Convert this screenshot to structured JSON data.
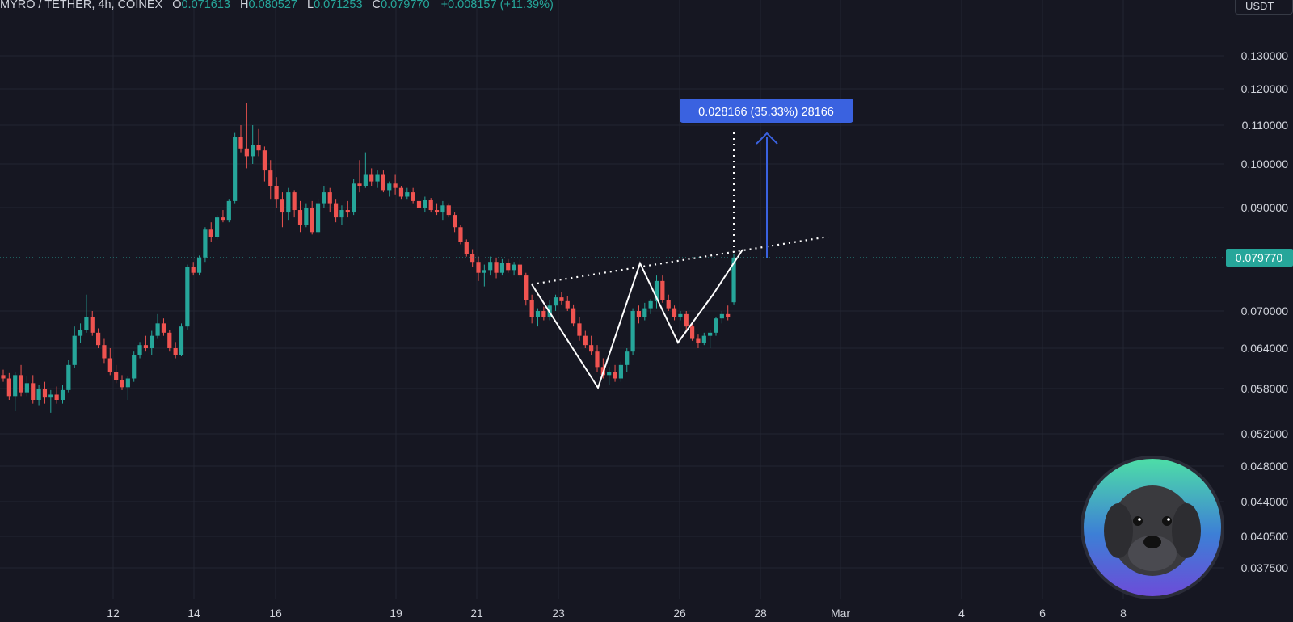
{
  "header": {
    "symbol": "MYRO / TETHER, 4h, COINEX",
    "open_label": "O",
    "open": "0.071613",
    "high_label": "H",
    "high": "0.080527",
    "low_label": "L",
    "low": "0.071253",
    "close_label": "C",
    "close": "0.079770",
    "change": "+0.008157 (+11.39%)"
  },
  "unit_button": "USDT",
  "measure_label": "0.028166 (35.33%) 28166",
  "colors": {
    "bg": "#161722",
    "up": "#26a69a",
    "down": "#ef5350",
    "grid": "#232532",
    "accent": "#3a62e0",
    "price_tag": "#26a69a"
  },
  "chart_data": {
    "type": "candlestick",
    "symbol": "MYRO / TETHER",
    "interval": "4h",
    "exchange": "COINEX",
    "current_price": 0.07977,
    "current_price_label": "0.079770",
    "y_ticks": [
      "0.130000",
      "0.120000",
      "0.110000",
      "0.100000",
      "0.090000",
      "0.079770",
      "0.070000",
      "0.064000",
      "0.058000",
      "0.052000",
      "0.048000",
      "0.044000",
      "0.040500",
      "0.037500"
    ],
    "x_ticks": [
      "12",
      "14",
      "16",
      "19",
      "21",
      "23",
      "26",
      "28",
      "Mar",
      "4",
      "6",
      "8"
    ],
    "candles": [
      [
        0.06,
        0.0608,
        0.059,
        0.0595
      ],
      [
        0.0595,
        0.0603,
        0.0565,
        0.057
      ],
      [
        0.057,
        0.0605,
        0.055,
        0.06
      ],
      [
        0.06,
        0.0615,
        0.057,
        0.0575
      ],
      [
        0.0575,
        0.0598,
        0.057,
        0.0588
      ],
      [
        0.0588,
        0.06,
        0.056,
        0.0565
      ],
      [
        0.0565,
        0.0585,
        0.0558,
        0.058
      ],
      [
        0.058,
        0.059,
        0.056,
        0.0568
      ],
      [
        0.0568,
        0.0578,
        0.0548,
        0.0572
      ],
      [
        0.0572,
        0.0583,
        0.056,
        0.0565
      ],
      [
        0.0565,
        0.0585,
        0.056,
        0.0578
      ],
      [
        0.0578,
        0.0622,
        0.0575,
        0.0615
      ],
      [
        0.0615,
        0.0675,
        0.061,
        0.066
      ],
      [
        0.066,
        0.068,
        0.0648,
        0.067
      ],
      [
        0.067,
        0.073,
        0.0665,
        0.069
      ],
      [
        0.069,
        0.07,
        0.066,
        0.0665
      ],
      [
        0.0665,
        0.0672,
        0.064,
        0.0645
      ],
      [
        0.0645,
        0.0655,
        0.0618,
        0.0625
      ],
      [
        0.0625,
        0.064,
        0.06,
        0.0605
      ],
      [
        0.0605,
        0.0615,
        0.0588,
        0.0592
      ],
      [
        0.0592,
        0.06,
        0.0578,
        0.0582
      ],
      [
        0.0582,
        0.0598,
        0.0565,
        0.0595
      ],
      [
        0.0595,
        0.0635,
        0.059,
        0.063
      ],
      [
        0.063,
        0.065,
        0.0625,
        0.0645
      ],
      [
        0.0645,
        0.066,
        0.0635,
        0.064
      ],
      [
        0.064,
        0.0668,
        0.063,
        0.066
      ],
      [
        0.066,
        0.0695,
        0.0655,
        0.068
      ],
      [
        0.068,
        0.0688,
        0.066,
        0.0665
      ],
      [
        0.0665,
        0.067,
        0.0635,
        0.064
      ],
      [
        0.064,
        0.065,
        0.0625,
        0.063
      ],
      [
        0.063,
        0.068,
        0.0628,
        0.0675
      ],
      [
        0.0675,
        0.0785,
        0.067,
        0.078
      ],
      [
        0.078,
        0.079,
        0.0765,
        0.077
      ],
      [
        0.077,
        0.0802,
        0.0765,
        0.0798
      ],
      [
        0.0798,
        0.086,
        0.079,
        0.0855
      ],
      [
        0.0855,
        0.087,
        0.083,
        0.084
      ],
      [
        0.084,
        0.0885,
        0.0835,
        0.088
      ],
      [
        0.088,
        0.0895,
        0.087,
        0.0875
      ],
      [
        0.0875,
        0.092,
        0.087,
        0.0915
      ],
      [
        0.0915,
        0.108,
        0.091,
        0.107
      ],
      [
        0.107,
        0.11,
        0.103,
        0.104
      ],
      [
        0.104,
        0.116,
        0.099,
        0.102
      ],
      [
        0.102,
        0.11,
        0.1,
        0.105
      ],
      [
        0.105,
        0.109,
        0.102,
        0.1035
      ],
      [
        0.1035,
        0.1045,
        0.096,
        0.0985
      ],
      [
        0.0985,
        0.101,
        0.092,
        0.095
      ],
      [
        0.095,
        0.097,
        0.09,
        0.092
      ],
      [
        0.092,
        0.0935,
        0.086,
        0.089
      ],
      [
        0.089,
        0.0945,
        0.0875,
        0.0935
      ],
      [
        0.0935,
        0.094,
        0.088,
        0.0895
      ],
      [
        0.0895,
        0.0915,
        0.085,
        0.0865
      ],
      [
        0.0865,
        0.091,
        0.086,
        0.09
      ],
      [
        0.09,
        0.0915,
        0.0845,
        0.085
      ],
      [
        0.085,
        0.092,
        0.0845,
        0.091
      ],
      [
        0.091,
        0.095,
        0.09,
        0.0935
      ],
      [
        0.0935,
        0.0945,
        0.089,
        0.091
      ],
      [
        0.091,
        0.092,
        0.087,
        0.088
      ],
      [
        0.088,
        0.0905,
        0.0865,
        0.0895
      ],
      [
        0.0895,
        0.0915,
        0.088,
        0.089
      ],
      [
        0.089,
        0.0965,
        0.0885,
        0.0955
      ],
      [
        0.0955,
        0.101,
        0.0935,
        0.095
      ],
      [
        0.095,
        0.103,
        0.0945,
        0.0975
      ],
      [
        0.0975,
        0.099,
        0.095,
        0.096
      ],
      [
        0.096,
        0.0985,
        0.0945,
        0.0975
      ],
      [
        0.0975,
        0.0985,
        0.0935,
        0.094
      ],
      [
        0.094,
        0.096,
        0.0925,
        0.0955
      ],
      [
        0.0955,
        0.0975,
        0.093,
        0.0945
      ],
      [
        0.0945,
        0.095,
        0.092,
        0.0925
      ],
      [
        0.0925,
        0.0945,
        0.092,
        0.0935
      ],
      [
        0.0935,
        0.0945,
        0.091,
        0.0915
      ],
      [
        0.0915,
        0.092,
        0.0895,
        0.09
      ],
      [
        0.09,
        0.0925,
        0.089,
        0.0918
      ],
      [
        0.0918,
        0.0922,
        0.089,
        0.0895
      ],
      [
        0.0895,
        0.091,
        0.0885,
        0.089
      ],
      [
        0.089,
        0.0915,
        0.0875,
        0.0905
      ],
      [
        0.0905,
        0.091,
        0.088,
        0.0885
      ],
      [
        0.0885,
        0.089,
        0.085,
        0.086
      ],
      [
        0.086,
        0.0865,
        0.0825,
        0.083
      ],
      [
        0.083,
        0.0835,
        0.08,
        0.0805
      ],
      [
        0.0805,
        0.0815,
        0.078,
        0.079
      ],
      [
        0.079,
        0.08,
        0.0755,
        0.077
      ],
      [
        0.077,
        0.0785,
        0.0745,
        0.0775
      ],
      [
        0.0775,
        0.08,
        0.0765,
        0.079
      ],
      [
        0.079,
        0.0798,
        0.076,
        0.077
      ],
      [
        0.077,
        0.0795,
        0.0765,
        0.0788
      ],
      [
        0.0788,
        0.0795,
        0.077,
        0.0775
      ],
      [
        0.0775,
        0.079,
        0.0765,
        0.0785
      ],
      [
        0.0785,
        0.0795,
        0.076,
        0.0765
      ],
      [
        0.0765,
        0.077,
        0.071,
        0.072
      ],
      [
        0.072,
        0.073,
        0.068,
        0.069
      ],
      [
        0.069,
        0.0705,
        0.0675,
        0.07
      ],
      [
        0.07,
        0.0708,
        0.0685,
        0.069
      ],
      [
        0.069,
        0.072,
        0.0685,
        0.071
      ],
      [
        0.071,
        0.073,
        0.07,
        0.0725
      ],
      [
        0.0725,
        0.0735,
        0.0712,
        0.0718
      ],
      [
        0.0718,
        0.0728,
        0.07,
        0.0705
      ],
      [
        0.0705,
        0.0712,
        0.0675,
        0.068
      ],
      [
        0.068,
        0.069,
        0.0652,
        0.066
      ],
      [
        0.066,
        0.0668,
        0.064,
        0.0645
      ],
      [
        0.0645,
        0.066,
        0.063,
        0.0635
      ],
      [
        0.0635,
        0.0645,
        0.0605,
        0.0612
      ],
      [
        0.0612,
        0.0625,
        0.0595,
        0.06
      ],
      [
        0.06,
        0.0612,
        0.0585,
        0.0605
      ],
      [
        0.0605,
        0.0615,
        0.059,
        0.0595
      ],
      [
        0.0595,
        0.062,
        0.059,
        0.0615
      ],
      [
        0.0615,
        0.064,
        0.0605,
        0.0635
      ],
      [
        0.0635,
        0.0705,
        0.063,
        0.07
      ],
      [
        0.07,
        0.071,
        0.068,
        0.069
      ],
      [
        0.069,
        0.0715,
        0.0685,
        0.0705
      ],
      [
        0.0705,
        0.0722,
        0.0695,
        0.0718
      ],
      [
        0.0718,
        0.0765,
        0.0705,
        0.0755
      ],
      [
        0.0755,
        0.0765,
        0.0715,
        0.072
      ],
      [
        0.072,
        0.073,
        0.07,
        0.0705
      ],
      [
        0.0705,
        0.071,
        0.0685,
        0.069
      ],
      [
        0.069,
        0.07,
        0.0685,
        0.0695
      ],
      [
        0.0695,
        0.07,
        0.067,
        0.0675
      ],
      [
        0.0675,
        0.068,
        0.0652,
        0.0655
      ],
      [
        0.0655,
        0.0662,
        0.064,
        0.0648
      ],
      [
        0.0648,
        0.0665,
        0.0645,
        0.066
      ],
      [
        0.066,
        0.067,
        0.064,
        0.0665
      ],
      [
        0.0665,
        0.069,
        0.066,
        0.0688
      ],
      [
        0.0688,
        0.07,
        0.068,
        0.0695
      ],
      [
        0.0695,
        0.071,
        0.0685,
        0.069
      ],
      [
        0.0716,
        0.0805,
        0.0712,
        0.0798
      ]
    ],
    "annotations": {
      "neckline_label": "",
      "measure": "0.028166 (35.33%) 28166"
    }
  }
}
